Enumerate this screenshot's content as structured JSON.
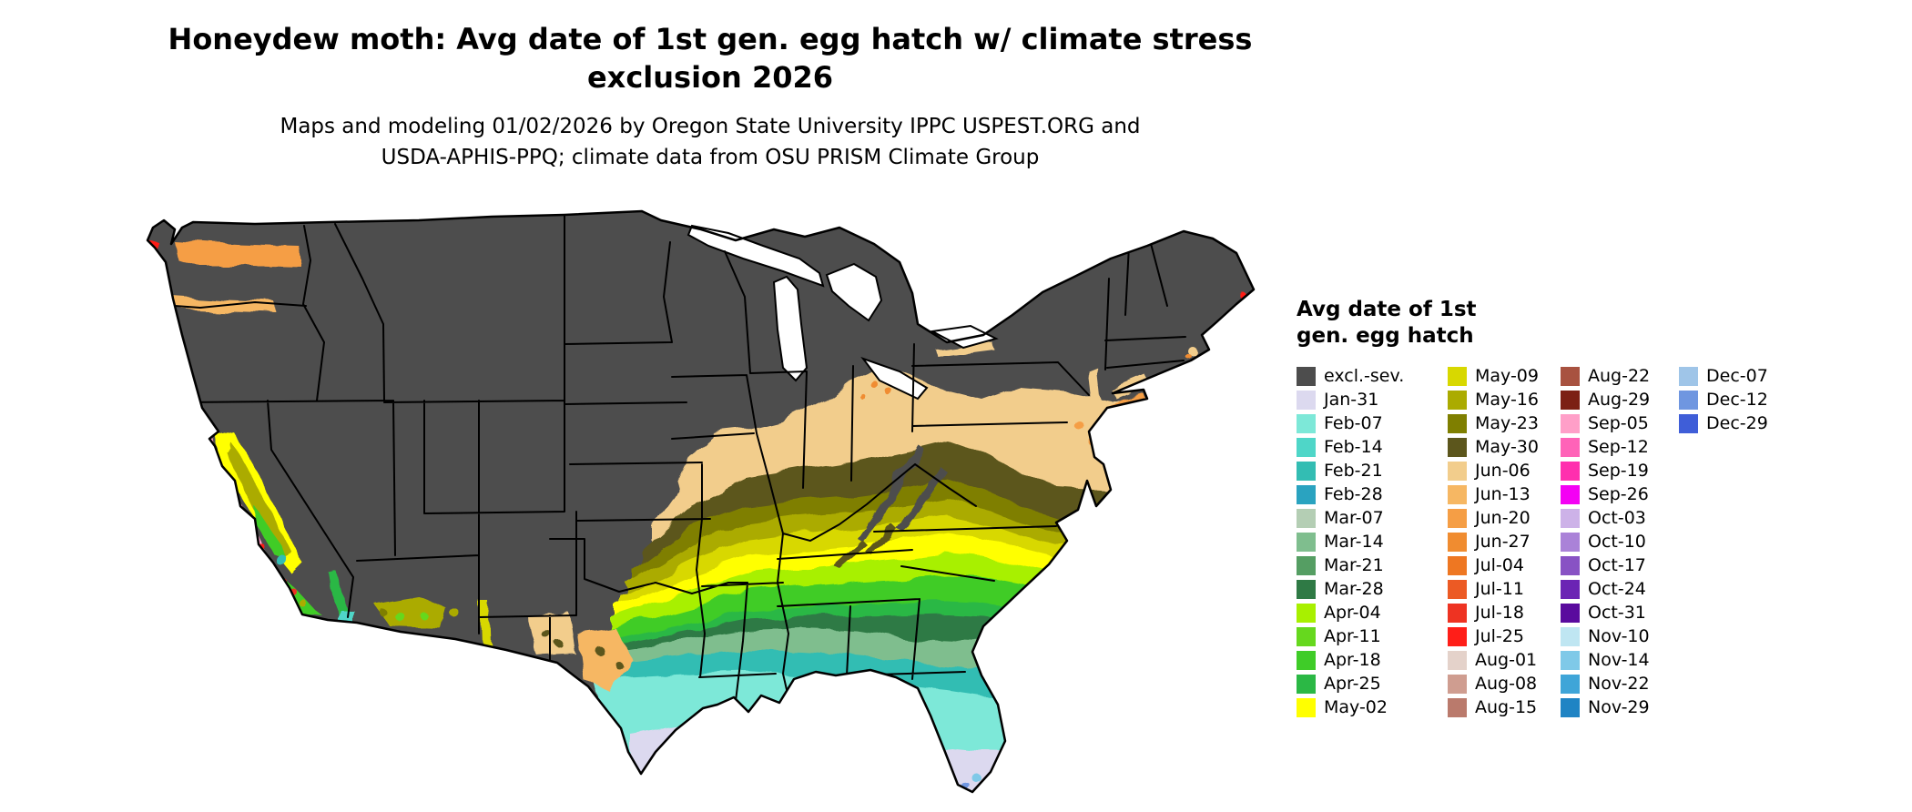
{
  "header": {
    "title_line1": "Honeydew moth: Avg date of 1st gen. egg hatch w/ climate stress",
    "title_line2": "exclusion 2026",
    "subtitle_line1": "Maps and modeling 01/02/2026 by Oregon State University IPPC USPEST.ORG and",
    "subtitle_line2": "USDA-APHIS-PPQ; climate data from OSU PRISM Climate Group"
  },
  "legend": {
    "title_line1": "Avg date of 1st",
    "title_line2": "gen. egg hatch",
    "columns": [
      [
        {
          "label": "excl.-sev.",
          "key": "excl_sev"
        },
        {
          "label": "Jan-31",
          "key": "jan31"
        },
        {
          "label": "Feb-07",
          "key": "feb07"
        },
        {
          "label": "Feb-14",
          "key": "feb14"
        },
        {
          "label": "Feb-21",
          "key": "feb21"
        },
        {
          "label": "Feb-28",
          "key": "feb28"
        },
        {
          "label": "Mar-07",
          "key": "mar07"
        },
        {
          "label": "Mar-14",
          "key": "mar14"
        },
        {
          "label": "Mar-21",
          "key": "mar21"
        },
        {
          "label": "Mar-28",
          "key": "mar28"
        },
        {
          "label": "Apr-04",
          "key": "apr04"
        },
        {
          "label": "Apr-11",
          "key": "apr11"
        },
        {
          "label": "Apr-18",
          "key": "apr18"
        },
        {
          "label": "Apr-25",
          "key": "apr25"
        },
        {
          "label": "May-02",
          "key": "may02"
        }
      ],
      [
        {
          "label": "May-09",
          "key": "may09"
        },
        {
          "label": "May-16",
          "key": "may16"
        },
        {
          "label": "May-23",
          "key": "may23"
        },
        {
          "label": "May-30",
          "key": "may30"
        },
        {
          "label": "Jun-06",
          "key": "jun06"
        },
        {
          "label": "Jun-13",
          "key": "jun13"
        },
        {
          "label": "Jun-20",
          "key": "jun20"
        },
        {
          "label": "Jun-27",
          "key": "jun27"
        },
        {
          "label": "Jul-04",
          "key": "jul04"
        },
        {
          "label": "Jul-11",
          "key": "jul11"
        },
        {
          "label": "Jul-18",
          "key": "jul18"
        },
        {
          "label": "Jul-25",
          "key": "jul25"
        },
        {
          "label": "Aug-01",
          "key": "aug01"
        },
        {
          "label": "Aug-08",
          "key": "aug08"
        },
        {
          "label": "Aug-15",
          "key": "aug15"
        }
      ],
      [
        {
          "label": "Aug-22",
          "key": "aug22"
        },
        {
          "label": "Aug-29",
          "key": "aug29"
        },
        {
          "label": "Sep-05",
          "key": "sep05"
        },
        {
          "label": "Sep-12",
          "key": "sep12"
        },
        {
          "label": "Sep-19",
          "key": "sep19"
        },
        {
          "label": "Sep-26",
          "key": "sep26"
        },
        {
          "label": "Oct-03",
          "key": "oct03"
        },
        {
          "label": "Oct-10",
          "key": "oct10"
        },
        {
          "label": "Oct-17",
          "key": "oct17"
        },
        {
          "label": "Oct-24",
          "key": "oct24"
        },
        {
          "label": "Oct-31",
          "key": "oct31"
        },
        {
          "label": "Nov-10",
          "key": "nov10"
        },
        {
          "label": "Nov-14",
          "key": "nov14"
        },
        {
          "label": "Nov-22",
          "key": "nov22"
        },
        {
          "label": "Nov-29",
          "key": "nov29"
        }
      ],
      [
        {
          "label": "Dec-07",
          "key": "dec07"
        },
        {
          "label": "Dec-12",
          "key": "dec12"
        },
        {
          "label": "Dec-29",
          "key": "dec29"
        }
      ]
    ]
  },
  "palette": {
    "excl_sev": "#4d4d4d",
    "jan31": "#dcd9ef",
    "feb07": "#7de8d8",
    "feb14": "#4fd6c8",
    "feb21": "#33bdb3",
    "feb28": "#2aa3c0",
    "mar07": "#b4ceb4",
    "mar14": "#7fbe8e",
    "mar21": "#559e63",
    "mar28": "#2f7a45",
    "apr04": "#a8f000",
    "apr11": "#66d81e",
    "apr18": "#3fcc28",
    "apr25": "#2bb845",
    "may02": "#ffff00",
    "may09": "#d8d800",
    "may16": "#abab00",
    "may23": "#7f7f00",
    "may30": "#5c561c",
    "jun06": "#f2cd8c",
    "jun13": "#f6b763",
    "jun20": "#f59e45",
    "jun27": "#f08c30",
    "jul04": "#ee7722",
    "jul11": "#ec5a24",
    "jul18": "#ee3322",
    "jul25": "#ff1e18",
    "aug01": "#e4d2ca",
    "aug08": "#cf9d90",
    "aug15": "#ba7a6c",
    "aug22": "#a85240",
    "aug29": "#7c2014",
    "sep05": "#ff9fc8",
    "sep12": "#ff63b8",
    "sep19": "#ff2fae",
    "sep26": "#f400f4",
    "oct03": "#cdb2e8",
    "oct10": "#aa82d8",
    "oct17": "#8852c4",
    "oct24": "#6b24b4",
    "oct31": "#5a0b9e",
    "nov10": "#bfe6f2",
    "nov14": "#7fc9e8",
    "nov22": "#3fa5d8",
    "nov29": "#1f84c4",
    "dec07": "#9fc5e8",
    "dec12": "#6f96e0",
    "dec29": "#3f5ed8"
  }
}
